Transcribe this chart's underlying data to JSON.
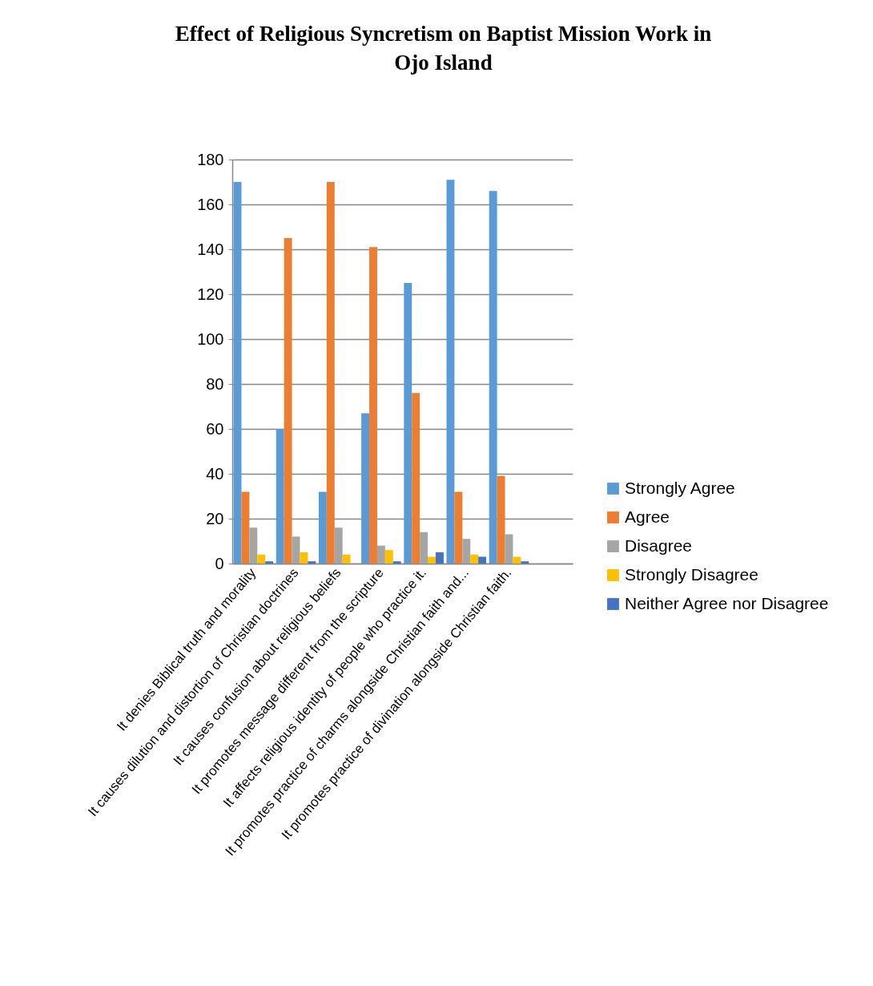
{
  "chart_data": {
    "type": "bar",
    "title": "Effect of Religious Syncretism on Baptist Mission Work in Ojo Island",
    "categories": [
      "It denies Biblical truth and morality",
      "It causes dilution and distortion of Christian doctrines",
      "It causes confusion about religious beliefs",
      "It promotes message different from the scripture",
      "It affects religious identity of people who practice it.",
      "It promotes practice of charms alongside Christian faith and...",
      "It promotes practice of divination alongside Christian faith.",
      null
    ],
    "series": [
      {
        "name": "Strongly Agree",
        "color": "#5b9bd5",
        "values": [
          170,
          60,
          32,
          67,
          125,
          171,
          166,
          null
        ]
      },
      {
        "name": "Agree",
        "color": "#ed7d31",
        "values": [
          32,
          145,
          170,
          141,
          76,
          32,
          39,
          null
        ]
      },
      {
        "name": "Disagree",
        "color": "#a5a5a5",
        "values": [
          16,
          12,
          16,
          8,
          14,
          11,
          13,
          null
        ]
      },
      {
        "name": "Strongly Disagree",
        "color": "#ffc000",
        "values": [
          4,
          5,
          4,
          6,
          3,
          4,
          3,
          null
        ]
      },
      {
        "name": "Neither Agree nor Disagree",
        "color": "#4472c4",
        "values": [
          1,
          1,
          0,
          1,
          5,
          3,
          1,
          null
        ]
      }
    ],
    "ylim": [
      0,
      180
    ],
    "yticks": [
      0,
      20,
      40,
      60,
      80,
      100,
      120,
      140,
      160,
      180
    ],
    "grid": "y",
    "legend": "right"
  }
}
